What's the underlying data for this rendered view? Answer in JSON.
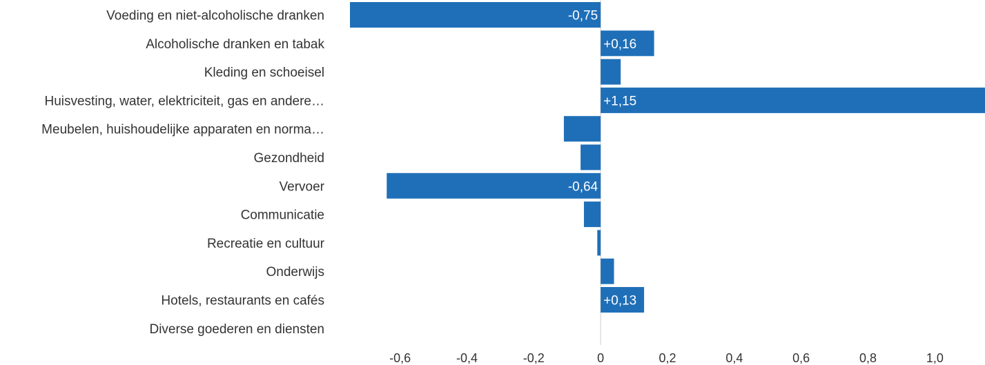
{
  "chart_data": {
    "type": "bar",
    "orientation": "horizontal",
    "categories": [
      "Voeding en niet-alcoholische dranken",
      "Alcoholische dranken en tabak",
      "Kleding en schoeisel",
      "Huisvesting, water, elektriciteit, gas en andere…",
      "Meubelen, huishoudelijke apparaten en norma…",
      "Gezondheid",
      "Vervoer",
      "Communicatie",
      "Recreatie en cultuur",
      "Onderwijs",
      "Hotels, restaurants en cafés",
      "Diverse goederen en diensten"
    ],
    "values": [
      -0.75,
      0.16,
      0.06,
      1.15,
      -0.11,
      -0.06,
      -0.64,
      -0.05,
      -0.01,
      0.04,
      0.13,
      0.0
    ],
    "data_labels": [
      "-0,75",
      "+0,16",
      "",
      "+1,15",
      "",
      "",
      "-0,64",
      "",
      "",
      "",
      "+0,13",
      ""
    ],
    "xticks": [
      "-0,6",
      "-0,4",
      "-0,2",
      "0",
      "0,2",
      "0,4",
      "0,6",
      "0,8",
      "1,0"
    ],
    "xtick_values": [
      -0.6,
      -0.4,
      -0.2,
      0,
      0.2,
      0.4,
      0.6,
      0.8,
      1.0
    ],
    "xlim": [
      -0.75,
      1.15
    ],
    "title": "",
    "xlabel": "",
    "ylabel": "",
    "grid": false,
    "bar_color": "#1f6fb8",
    "zero_line_color": "#cccccc"
  }
}
